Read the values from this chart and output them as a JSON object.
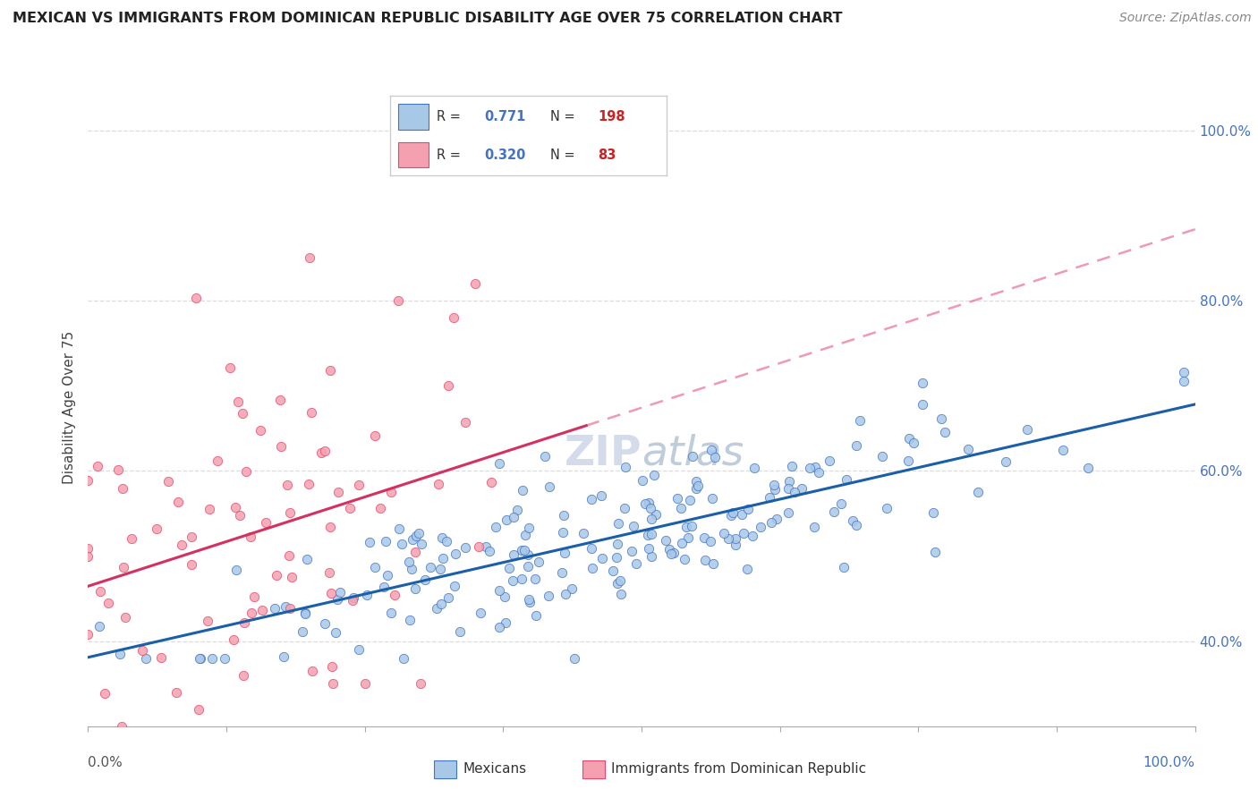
{
  "title": "MEXICAN VS IMMIGRANTS FROM DOMINICAN REPUBLIC DISABILITY AGE OVER 75 CORRELATION CHART",
  "source": "Source: ZipAtlas.com",
  "ylabel": "Disability Age Over 75",
  "blue_R": "0.771",
  "blue_N": "198",
  "pink_R": "0.320",
  "pink_N": "83",
  "blue_color": "#a8c8e8",
  "pink_color": "#f4a0b0",
  "blue_edge_color": "#4472c4",
  "pink_edge_color": "#e8476a",
  "blue_line_color": "#1a5fa8",
  "pink_line_color": "#d43060",
  "pink_dash_color": "#e87090",
  "watermark_text": "ZIPatlas",
  "watermark_color": "#d0d8e8",
  "grid_color": "#dddddd",
  "right_axis_color": "#4472c4",
  "seed": 12,
  "n_blue": 198,
  "n_pink": 83,
  "xlim": [
    0,
    100
  ],
  "ylim": [
    30,
    105
  ],
  "yticks": [
    40,
    60,
    80,
    100
  ],
  "xtick_positions": [
    0,
    12.5,
    25,
    37.5,
    50,
    62.5,
    75,
    87.5,
    100
  ]
}
